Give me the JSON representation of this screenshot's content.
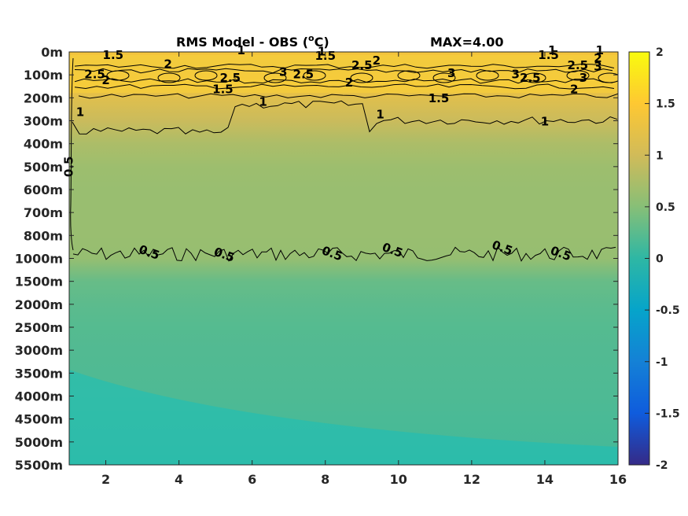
{
  "chart_data": {
    "type": "heatmap",
    "title": "RMS Model - OBS (",
    "title_unit_sup": "o",
    "title_unit_tail": "C)",
    "max_label": "MAX=4.00",
    "x": {
      "ticks": [
        "2",
        "4",
        "6",
        "8",
        "10",
        "12",
        "14",
        "16"
      ],
      "tick_values": [
        2,
        4,
        6,
        8,
        10,
        12,
        14,
        16
      ],
      "range": [
        1,
        16
      ]
    },
    "y": {
      "ticks": [
        "0m",
        "100m",
        "200m",
        "300m",
        "400m",
        "500m",
        "600m",
        "700m",
        "800m",
        "1000m",
        "1500m",
        "2000m",
        "2500m",
        "3000m",
        "3500m",
        "4000m",
        "4500m",
        "5000m",
        "5500m"
      ]
    },
    "colorbar": {
      "ticks": [
        "2",
        "1.5",
        "1",
        "0.5",
        "0",
        "-0.5",
        "-1",
        "-1.5",
        "-2"
      ],
      "range": [
        -2,
        2
      ],
      "colormap": "parula"
    },
    "depth_profile": [
      {
        "level": 0,
        "value": 1.4
      },
      {
        "level": 0.5,
        "value": 1.3
      },
      {
        "level": 1,
        "value": 1.35
      },
      {
        "level": 1.5,
        "value": 1.4
      },
      {
        "level": 2,
        "value": 1.15
      },
      {
        "level": 3,
        "value": 0.95
      },
      {
        "level": 4,
        "value": 0.75
      },
      {
        "level": 5,
        "value": 0.65
      },
      {
        "level": 6,
        "value": 0.62
      },
      {
        "level": 7,
        "value": 0.62
      },
      {
        "level": 8,
        "value": 0.62
      },
      {
        "level": 9,
        "value": 0.6
      },
      {
        "level": 10,
        "value": 0.32
      },
      {
        "level": 11,
        "value": 0.26
      },
      {
        "level": 12,
        "value": 0.22
      },
      {
        "level": 13,
        "value": 0.2
      },
      {
        "level": 15,
        "value": 0.18
      },
      {
        "level": 16,
        "value": 0.16
      },
      {
        "level": 17,
        "value": 0.14
      },
      {
        "level": 18,
        "value": 0.12
      }
    ],
    "contour_labels": [
      {
        "text": "1.5",
        "x": 2.2,
        "level": 0.3
      },
      {
        "text": "1",
        "x": 5.7,
        "level": 0.1
      },
      {
        "text": "1",
        "x": 7.9,
        "level": 0.15
      },
      {
        "text": "1.5",
        "x": 8.0,
        "level": 0.35
      },
      {
        "text": "2.5",
        "x": 1.7,
        "level": 1.15
      },
      {
        "text": "2",
        "x": 2.0,
        "level": 1.4
      },
      {
        "text": "2",
        "x": 3.7,
        "level": 0.7
      },
      {
        "text": "2.5",
        "x": 5.4,
        "level": 1.3
      },
      {
        "text": "3",
        "x": 6.85,
        "level": 1.05
      },
      {
        "text": "2.5",
        "x": 7.4,
        "level": 1.15
      },
      {
        "text": "2.5",
        "x": 9.0,
        "level": 0.75
      },
      {
        "text": "2",
        "x": 9.4,
        "level": 0.55
      },
      {
        "text": "2",
        "x": 8.65,
        "level": 1.5
      },
      {
        "text": "1.5",
        "x": 5.2,
        "level": 1.8
      },
      {
        "text": "1",
        "x": 6.3,
        "level": 2.35
      },
      {
        "text": "1.5",
        "x": 11.1,
        "level": 2.2
      },
      {
        "text": "3",
        "x": 11.45,
        "level": 1.1
      },
      {
        "text": "3",
        "x": 13.2,
        "level": 1.15
      },
      {
        "text": "2.5",
        "x": 13.6,
        "level": 1.3
      },
      {
        "text": "1.5",
        "x": 14.1,
        "level": 0.3
      },
      {
        "text": "1",
        "x": 14.2,
        "level": 0.1
      },
      {
        "text": "2.5",
        "x": 14.9,
        "level": 0.75
      },
      {
        "text": "1",
        "x": 15.5,
        "level": 0.1
      },
      {
        "text": "2",
        "x": 15.45,
        "level": 0.45
      },
      {
        "text": "3",
        "x": 15.45,
        "level": 0.8
      },
      {
        "text": "3",
        "x": 15.05,
        "level": 1.3
      },
      {
        "text": "2",
        "x": 14.8,
        "level": 1.8
      },
      {
        "text": "1",
        "x": 1.3,
        "level": 2.8
      },
      {
        "text": "1",
        "x": 9.5,
        "level": 2.9
      },
      {
        "text": "1",
        "x": 14.0,
        "level": 3.2
      },
      {
        "text": "0.5",
        "x": 1.1,
        "level": 5.0
      },
      {
        "text": "0.5",
        "x": 3.15,
        "level": 8.9
      },
      {
        "text": "0.5",
        "x": 5.2,
        "level": 9.0
      },
      {
        "text": "0.5",
        "x": 8.15,
        "level": 8.95
      },
      {
        "text": "0.5",
        "x": 9.8,
        "level": 8.8
      },
      {
        "text": "0.5",
        "x": 12.8,
        "level": 8.7
      },
      {
        "text": "0.5",
        "x": 14.4,
        "level": 8.95
      }
    ]
  }
}
